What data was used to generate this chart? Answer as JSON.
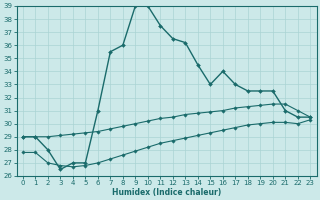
{
  "xlabel": "Humidex (Indice chaleur)",
  "background_color": "#cce9e9",
  "line_color": "#1a6b6b",
  "grid_color": "#aad4d4",
  "xlim": [
    -0.5,
    23.5
  ],
  "ylim": [
    26,
    39
  ],
  "xticks": [
    0,
    1,
    2,
    3,
    4,
    5,
    6,
    7,
    8,
    9,
    10,
    11,
    12,
    13,
    14,
    15,
    16,
    17,
    18,
    19,
    20,
    21,
    22,
    23
  ],
  "yticks": [
    26,
    27,
    28,
    29,
    30,
    31,
    32,
    33,
    34,
    35,
    36,
    37,
    38,
    39
  ],
  "main_x": [
    0,
    1,
    2,
    3,
    4,
    5,
    6,
    7,
    8,
    9,
    10,
    11,
    12,
    13,
    14,
    15,
    16,
    17,
    18,
    19,
    20,
    21,
    22,
    23
  ],
  "main_y": [
    29,
    29,
    28,
    26.5,
    27,
    27,
    31,
    35.5,
    36,
    39,
    39,
    37.5,
    36.5,
    36.2,
    34.5,
    33,
    34,
    33,
    32.5,
    32.5,
    32.5,
    31,
    30.5,
    30.5
  ],
  "line1_x": [
    0,
    1,
    2,
    3,
    4,
    5,
    6,
    7,
    8,
    9,
    10,
    11,
    12,
    13,
    14,
    15,
    16,
    17,
    18,
    19,
    20,
    21,
    22,
    23
  ],
  "line1_y": [
    29,
    29,
    29,
    29.1,
    29.2,
    29.3,
    29.4,
    29.6,
    29.8,
    30.0,
    30.2,
    30.4,
    30.5,
    30.7,
    30.8,
    30.9,
    31.0,
    31.2,
    31.3,
    31.4,
    31.5,
    31.5,
    31.0,
    30.5
  ],
  "line2_x": [
    0,
    1,
    2,
    3,
    4,
    5,
    6,
    7,
    8,
    9,
    10,
    11,
    12,
    13,
    14,
    15,
    16,
    17,
    18,
    19,
    20,
    21,
    22,
    23
  ],
  "line2_y": [
    27.8,
    27.8,
    27.0,
    26.8,
    26.7,
    26.8,
    27.0,
    27.3,
    27.6,
    27.9,
    28.2,
    28.5,
    28.7,
    28.9,
    29.1,
    29.3,
    29.5,
    29.7,
    29.9,
    30.0,
    30.1,
    30.1,
    30.0,
    30.3
  ]
}
